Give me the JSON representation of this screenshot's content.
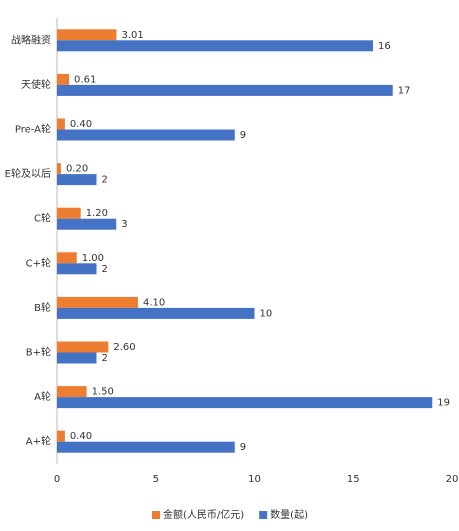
{
  "chart_data": {
    "type": "barh",
    "categories": [
      "战略融资",
      "天使轮",
      "Pre-A轮",
      "E轮及以后",
      "C轮",
      "C+轮",
      "B轮",
      "B+轮",
      "A轮",
      "A+轮"
    ],
    "series": [
      {
        "name": "金额(人民币/亿元)",
        "color": "#ed7d31",
        "values": [
          3.01,
          0.61,
          0.4,
          0.2,
          1.2,
          1.0,
          4.1,
          2.6,
          1.5,
          0.4
        ],
        "value_labels": [
          "3.01",
          "0.61",
          "0.40",
          "0.20",
          "1.20",
          "1.00",
          "4.10",
          "2.60",
          "1.50",
          "0.40"
        ]
      },
      {
        "name": "数量(起)",
        "color": "#4472c4",
        "values": [
          16,
          17,
          9,
          2,
          3,
          2,
          10,
          2,
          19,
          9
        ]
      }
    ],
    "xlim": [
      0,
      20
    ],
    "xticks": [
      0,
      5,
      10,
      15,
      20
    ],
    "grid": false,
    "legend": "bottom"
  }
}
